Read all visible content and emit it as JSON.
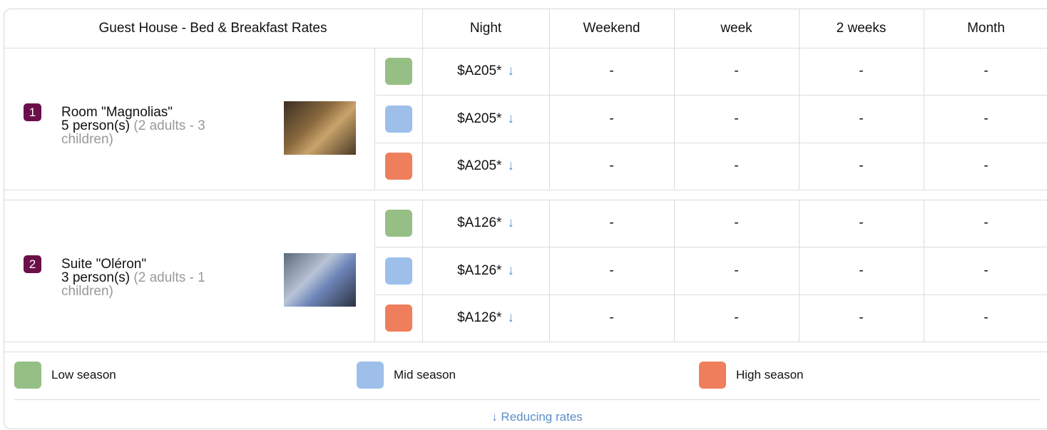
{
  "header": {
    "title": "Guest House - Bed & Breakfast Rates",
    "columns": [
      "Night",
      "Weekend",
      "week",
      "2 weeks",
      "Month"
    ]
  },
  "rooms": [
    {
      "number": "1",
      "name": "Room \"Magnolias\"",
      "capacity": "5 person(s)",
      "details": "(2 adults - 3 children)",
      "rates": [
        {
          "night": "$A205*",
          "arrow": "↓",
          "cells": [
            "-",
            "-",
            "-",
            "-"
          ]
        },
        {
          "night": "$A205*",
          "arrow": "↓",
          "cells": [
            "-",
            "-",
            "-",
            "-"
          ]
        },
        {
          "night": "$A205*",
          "arrow": "↓",
          "cells": [
            "-",
            "-",
            "-",
            "-"
          ]
        }
      ]
    },
    {
      "number": "2",
      "name": "Suite \"Oléron\"",
      "capacity": "3 person(s)",
      "details": "(2 adults - 1 children)",
      "rates": [
        {
          "night": "$A126*",
          "arrow": "↓",
          "cells": [
            "-",
            "-",
            "-",
            "-"
          ]
        },
        {
          "night": "$A126*",
          "arrow": "↓",
          "cells": [
            "-",
            "-",
            "-",
            "-"
          ]
        },
        {
          "night": "$A126*",
          "arrow": "↓",
          "cells": [
            "-",
            "-",
            "-",
            "-"
          ]
        }
      ]
    }
  ],
  "legend": {
    "seasons": [
      {
        "label": "Low season",
        "color": "#96bf86"
      },
      {
        "label": "Mid season",
        "color": "#9dbfea"
      },
      {
        "label": "High season",
        "color": "#ef7f5c"
      }
    ],
    "note": "↓ Reducing rates"
  }
}
